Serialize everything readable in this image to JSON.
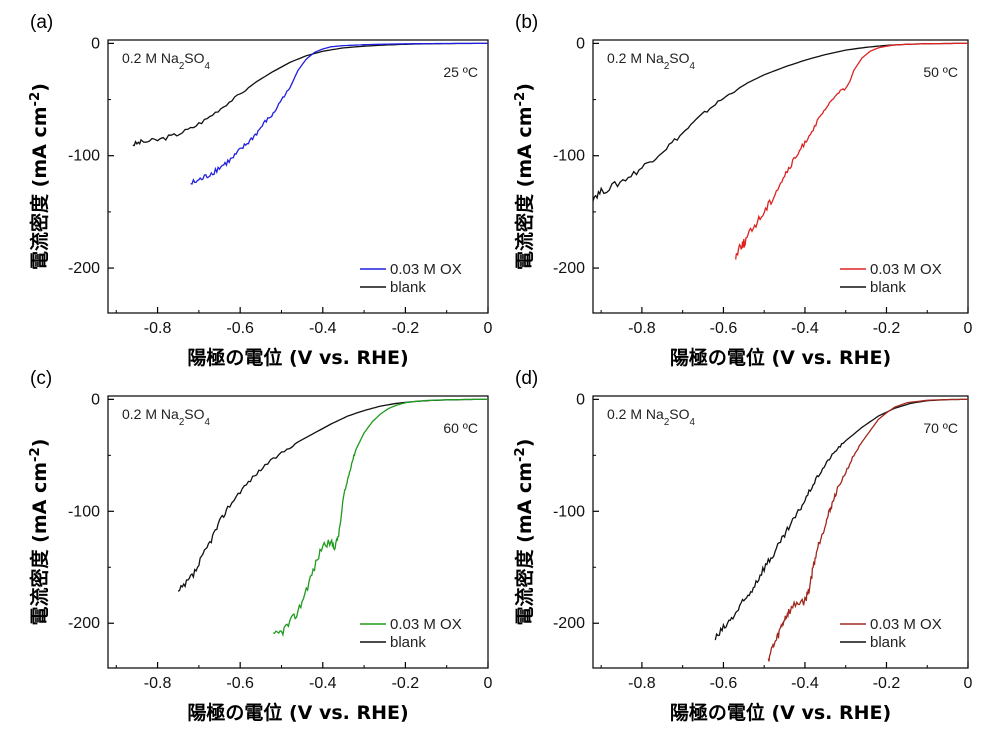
{
  "chart_data": [
    {
      "type": "line",
      "panel_label": "(a)",
      "annotation": "0.2 M Na2SO4",
      "temperature": "25 ºC",
      "xlabel": "陽極の電位 (V vs. RHE)",
      "ylabel": "電流密度 (mA cm-2)",
      "xlim": [
        -0.92,
        0
      ],
      "ylim": [
        -240,
        3
      ],
      "xticks": [
        "-0.8",
        "-0.6",
        "-0.4",
        "-0.2",
        "0"
      ],
      "yticks": [
        "0",
        "-100",
        "-200"
      ],
      "series": [
        {
          "name": "0.03 M OX",
          "color": "#1f1fe0",
          "x": [
            -0.72,
            -0.7,
            -0.68,
            -0.66,
            -0.64,
            -0.62,
            -0.6,
            -0.58,
            -0.56,
            -0.54,
            -0.52,
            -0.5,
            -0.48,
            -0.46,
            -0.44,
            -0.42,
            -0.4,
            -0.38,
            -0.35,
            -0.3,
            -0.25,
            -0.2,
            -0.15,
            -0.1,
            -0.05,
            0
          ],
          "y": [
            -125,
            -122,
            -118,
            -113,
            -108,
            -103,
            -95,
            -88,
            -80,
            -70,
            -63,
            -50,
            -40,
            -24,
            -14,
            -8,
            -5,
            -3,
            -2,
            -1.2,
            -0.7,
            -0.4,
            -0.2,
            -0.1,
            0,
            0
          ]
        },
        {
          "name": "blank",
          "color": "#111111",
          "x": [
            -0.86,
            -0.84,
            -0.8,
            -0.76,
            -0.72,
            -0.68,
            -0.64,
            -0.6,
            -0.56,
            -0.52,
            -0.48,
            -0.44,
            -0.4,
            -0.35,
            -0.3,
            -0.25,
            -0.2,
            -0.15,
            -0.1,
            -0.05,
            0
          ],
          "y": [
            -90,
            -88,
            -86,
            -82,
            -76,
            -67,
            -56,
            -45,
            -34,
            -25,
            -17,
            -11,
            -7,
            -4,
            -2.5,
            -1.5,
            -0.8,
            -0.4,
            -0.2,
            -0.1,
            0
          ]
        }
      ]
    },
    {
      "type": "line",
      "panel_label": "(b)",
      "annotation": "0.2 M Na2SO4",
      "temperature": "50 ºC",
      "xlabel": "陽極の電位 (V vs. RHE)",
      "ylabel": "電流密度 (mA cm-2)",
      "xlim": [
        -0.92,
        0
      ],
      "ylim": [
        -240,
        3
      ],
      "xticks": [
        "-0.8",
        "-0.6",
        "-0.4",
        "-0.2",
        "0"
      ],
      "yticks": [
        "0",
        "-100",
        "-200"
      ],
      "series": [
        {
          "name": "0.03 M OX",
          "color": "#dd2222",
          "x": [
            -0.57,
            -0.56,
            -0.55,
            -0.54,
            -0.52,
            -0.5,
            -0.48,
            -0.46,
            -0.44,
            -0.42,
            -0.4,
            -0.38,
            -0.36,
            -0.34,
            -0.32,
            -0.3,
            -0.29,
            -0.28,
            -0.26,
            -0.24,
            -0.22,
            -0.2,
            -0.18,
            -0.15,
            -0.1,
            -0.05,
            0
          ],
          "y": [
            -190,
            -180,
            -178,
            -172,
            -160,
            -150,
            -138,
            -124,
            -112,
            -100,
            -88,
            -76,
            -64,
            -54,
            -44,
            -40,
            -34,
            -24,
            -13,
            -7,
            -4,
            -2.5,
            -1.5,
            -0.8,
            -0.3,
            -0.1,
            0
          ]
        },
        {
          "name": "blank",
          "color": "#111111",
          "x": [
            -0.92,
            -0.9,
            -0.86,
            -0.82,
            -0.78,
            -0.74,
            -0.7,
            -0.66,
            -0.62,
            -0.58,
            -0.54,
            -0.5,
            -0.45,
            -0.4,
            -0.35,
            -0.3,
            -0.25,
            -0.2,
            -0.15,
            -0.1,
            -0.05,
            0
          ],
          "y": [
            -137,
            -132,
            -125,
            -116,
            -105,
            -93,
            -80,
            -66,
            -54,
            -44,
            -35,
            -28,
            -21,
            -15,
            -10,
            -6,
            -3.5,
            -1.8,
            -0.8,
            -0.3,
            -0.1,
            0
          ]
        }
      ]
    },
    {
      "type": "line",
      "panel_label": "(c)",
      "annotation": "0.2 M Na2SO4",
      "temperature": "60 ºC",
      "xlabel": "陽極の電位 (V vs. RHE)",
      "ylabel": "電流密度 (mA cm-2)",
      "xlim": [
        -0.92,
        0
      ],
      "ylim": [
        -240,
        3
      ],
      "xticks": [
        "-0.8",
        "-0.6",
        "-0.4",
        "-0.2",
        "0"
      ],
      "yticks": [
        "0",
        "-100",
        "-200"
      ],
      "series": [
        {
          "name": "0.03 M OX",
          "color": "#1e9a1e",
          "x": [
            -0.52,
            -0.5,
            -0.48,
            -0.46,
            -0.44,
            -0.42,
            -0.4,
            -0.38,
            -0.37,
            -0.36,
            -0.35,
            -0.34,
            -0.33,
            -0.32,
            -0.3,
            -0.28,
            -0.26,
            -0.24,
            -0.22,
            -0.2,
            -0.18,
            -0.15,
            -0.1,
            -0.05,
            0
          ],
          "y": [
            -212,
            -208,
            -200,
            -190,
            -170,
            -150,
            -130,
            -128,
            -132,
            -118,
            -88,
            -72,
            -57,
            -45,
            -30,
            -20,
            -13,
            -8,
            -5,
            -3,
            -2,
            -1,
            -0.4,
            -0.1,
            0
          ]
        },
        {
          "name": "blank",
          "color": "#111111",
          "x": [
            -0.75,
            -0.73,
            -0.71,
            -0.69,
            -0.67,
            -0.65,
            -0.63,
            -0.6,
            -0.57,
            -0.54,
            -0.5,
            -0.46,
            -0.42,
            -0.38,
            -0.34,
            -0.3,
            -0.26,
            -0.22,
            -0.18,
            -0.14,
            -0.1,
            -0.05,
            0
          ],
          "y": [
            -173,
            -165,
            -155,
            -140,
            -125,
            -110,
            -97,
            -82,
            -70,
            -59,
            -48,
            -38,
            -30,
            -22,
            -15,
            -10,
            -6,
            -3.5,
            -2,
            -1,
            -0.5,
            -0.1,
            0
          ]
        }
      ]
    },
    {
      "type": "line",
      "panel_label": "(d)",
      "annotation": "0.2 M Na2SO4",
      "temperature": "70 ºC",
      "xlabel": "陽極の電位 (V vs. RHE)",
      "ylabel": "電流密度 (mA cm-2)",
      "xlim": [
        -0.92,
        0
      ],
      "ylim": [
        -240,
        3
      ],
      "xticks": [
        "-0.8",
        "-0.6",
        "-0.4",
        "-0.2",
        "0"
      ],
      "yticks": [
        "0",
        "-100",
        "-200"
      ],
      "series": [
        {
          "name": "0.03 M OX",
          "color": "#a0281e",
          "x": [
            -0.49,
            -0.48,
            -0.47,
            -0.46,
            -0.45,
            -0.44,
            -0.42,
            -0.4,
            -0.39,
            -0.38,
            -0.37,
            -0.36,
            -0.35,
            -0.34,
            -0.33,
            -0.32,
            -0.3,
            -0.28,
            -0.26,
            -0.24,
            -0.22,
            -0.2,
            -0.18,
            -0.15,
            -0.1,
            -0.05,
            0
          ],
          "y": [
            -232,
            -222,
            -215,
            -205,
            -196,
            -190,
            -182,
            -180,
            -170,
            -150,
            -134,
            -122,
            -112,
            -100,
            -90,
            -80,
            -65,
            -50,
            -38,
            -28,
            -18,
            -12,
            -7,
            -3,
            -0.8,
            -0.2,
            0
          ]
        },
        {
          "name": "blank",
          "color": "#111111",
          "x": [
            -0.62,
            -0.6,
            -0.58,
            -0.56,
            -0.54,
            -0.52,
            -0.5,
            -0.48,
            -0.46,
            -0.44,
            -0.42,
            -0.4,
            -0.38,
            -0.36,
            -0.34,
            -0.32,
            -0.3,
            -0.26,
            -0.22,
            -0.18,
            -0.14,
            -0.1,
            -0.05,
            0
          ],
          "y": [
            -214,
            -205,
            -196,
            -186,
            -176,
            -163,
            -150,
            -140,
            -128,
            -115,
            -103,
            -90,
            -76,
            -64,
            -53,
            -44,
            -37,
            -25,
            -15,
            -8,
            -3.5,
            -1.2,
            -0.2,
            0
          ]
        }
      ]
    }
  ]
}
